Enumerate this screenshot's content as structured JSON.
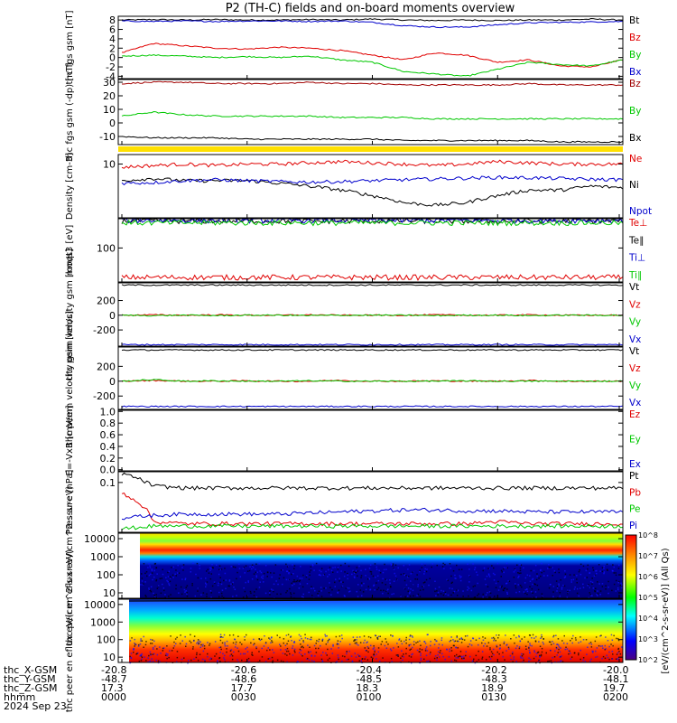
{
  "title": "P2 (TH-C) fields and on-board moments overview",
  "date_label": "2024 Sep 23",
  "colorbar_label": "[eV/(cm^2-s-sr-eV)] (All Qs)",
  "colorbar_ticks": [
    "10^2",
    "10^3",
    "10^4",
    "10^5",
    "10^6",
    "10^7",
    "10^8"
  ],
  "footer": {
    "row_labels": [
      "thc_X-GSM",
      "thc_Y-GSM",
      "thc_Z-GSM",
      "hhmm"
    ],
    "columns": [
      [
        "-20.8",
        "-48.7",
        "17.3",
        "0000"
      ],
      [
        "-20.6",
        "-48.6",
        "17.7",
        "0030"
      ],
      [
        "-20.4",
        "-48.5",
        "18.3",
        "0100"
      ],
      [
        "-20.2",
        "-48.3",
        "18.9",
        "0130"
      ],
      [
        "-20.0",
        "-48.1",
        "19.7",
        "0200"
      ]
    ]
  },
  "colors": {
    "black": "#000000",
    "red": "#e00000",
    "green": "#00c800",
    "blue": "#0000cc",
    "darkred": "#a00000",
    "yellow": "#ffe000"
  },
  "chart_data": [
    {
      "type": "line",
      "ylabel": "thc fgs gsm [nT]",
      "ylim": [
        -4.5,
        8.8
      ],
      "yticks": [
        "8",
        "6",
        "4",
        "2",
        "0",
        "-2",
        "-4"
      ],
      "series": [
        {
          "name": "Bt",
          "color": "#000000",
          "values": [
            8.0,
            8.1,
            8.0,
            8.1,
            8.0,
            8.0,
            8.1,
            8.0,
            8.2,
            8.0,
            7.9,
            8.0,
            7.9,
            8.0,
            8.0,
            8.2,
            8.0
          ]
        },
        {
          "name": "Bz",
          "color": "#e00000",
          "values": [
            1.0,
            3.0,
            2.5,
            2.0,
            1.8,
            2.2,
            2.0,
            1.5,
            0.5,
            -0.5,
            1.0,
            0.5,
            -1.0,
            -0.5,
            -1.8,
            -2.0,
            -0.5
          ]
        },
        {
          "name": "By",
          "color": "#00c800",
          "values": [
            0.3,
            0.5,
            0.3,
            0.0,
            0.2,
            0.0,
            0.3,
            -0.5,
            -1.0,
            -3.0,
            -3.5,
            -4.0,
            -2.5,
            -1.0,
            -1.5,
            -1.8,
            -0.5
          ]
        },
        {
          "name": "Bx",
          "color": "#0000cc",
          "values": [
            7.8,
            7.7,
            7.8,
            7.7,
            7.8,
            7.8,
            7.7,
            7.8,
            7.5,
            6.8,
            6.5,
            6.5,
            7.0,
            7.4,
            7.5,
            7.6,
            7.7
          ]
        }
      ]
    },
    {
      "type": "line",
      "ylabel": "thc fgs gsm (-dp) [nT]",
      "ylim": [
        -16,
        32
      ],
      "yticks": [
        "30",
        "20",
        "10",
        "0",
        "-10"
      ],
      "series": [
        {
          "name": "Bz",
          "color": "#a00000",
          "values": [
            29,
            30,
            30,
            29,
            29,
            29,
            30,
            29,
            29,
            28,
            28,
            28,
            28,
            29,
            28,
            28,
            28
          ]
        },
        {
          "name": "By",
          "color": "#00c800",
          "values": [
            5,
            8,
            6,
            5,
            5,
            5,
            5,
            4,
            4,
            4,
            3,
            3,
            3,
            3,
            3,
            3,
            3
          ]
        },
        {
          "name": "Bx",
          "color": "#000000",
          "values": [
            -10,
            -11,
            -11,
            -11,
            -12,
            -12,
            -12,
            -12,
            -12,
            -13,
            -13,
            -13,
            -13,
            -13,
            -14,
            -14,
            -14
          ]
        }
      ]
    },
    {
      "type": "line",
      "ylabel": "Density [cm-3]",
      "ylim": [
        0.2,
        20
      ],
      "yscale": "log",
      "yticks": [
        "10"
      ],
      "series": [
        {
          "name": "Ne",
          "color": "#e00000",
          "values": [
            8,
            9,
            10,
            9,
            10,
            10,
            11,
            12,
            11,
            10,
            9,
            10,
            12,
            11,
            10,
            10,
            10
          ]
        },
        {
          "name": "Ni",
          "color": "#000000",
          "values": [
            3,
            3.5,
            3,
            3,
            3,
            2.5,
            2,
            1.5,
            1,
            0.6,
            0.5,
            0.6,
            1,
            1.5,
            1.5,
            2,
            1.8
          ]
        },
        {
          "name": "Npot",
          "color": "#0000cc",
          "values": [
            2.5,
            2.6,
            3,
            3.2,
            3.0,
            2.8,
            2.7,
            2.8,
            3.0,
            3.2,
            3.4,
            3.6,
            3.8,
            3.7,
            3.5,
            3.3,
            3.2
          ]
        }
      ]
    },
    {
      "type": "line",
      "ylabel": "moqt3 [eV]",
      "ylim": [
        20,
        400
      ],
      "yscale": "log",
      "yticks": [
        "100"
      ],
      "series": [
        {
          "name": "Te⊥",
          "color": "#e00000",
          "values": [
            25,
            25,
            25,
            25,
            25,
            25,
            25,
            25,
            25,
            25,
            25,
            25,
            25,
            25,
            25,
            25,
            25
          ]
        },
        {
          "name": "Te∥",
          "color": "#000000",
          "values": [
            360,
            360,
            360,
            360,
            360,
            360,
            360,
            360,
            360,
            360,
            360,
            360,
            360,
            360,
            360,
            360,
            360
          ]
        },
        {
          "name": "Ti⊥",
          "color": "#0000cc",
          "values": [
            370,
            370,
            370,
            370,
            370,
            370,
            370,
            370,
            370,
            370,
            370,
            370,
            370,
            370,
            370,
            370,
            370
          ]
        },
        {
          "name": "Ti∥",
          "color": "#00c800",
          "values": [
            330,
            330,
            330,
            330,
            330,
            330,
            330,
            330,
            330,
            330,
            330,
            330,
            330,
            330,
            330,
            330,
            330
          ]
        }
      ]
    },
    {
      "type": "line",
      "ylabel": "thc peim velocity gsm [km/s]",
      "ylim": [
        -420,
        440
      ],
      "yticks": [
        "200",
        "0",
        "-200"
      ],
      "series": [
        {
          "name": "Vt",
          "color": "#000000",
          "values": [
            410,
            410,
            410,
            410,
            410,
            410,
            410,
            410,
            410,
            410,
            410,
            410,
            410,
            410,
            410,
            410,
            410
          ]
        },
        {
          "name": "Vz",
          "color": "#e00000",
          "values": [
            0,
            5,
            0,
            5,
            0,
            0,
            5,
            0,
            0,
            0,
            5,
            0,
            0,
            5,
            0,
            0,
            0
          ]
        },
        {
          "name": "Vy",
          "color": "#00c800",
          "values": [
            0,
            -5,
            0,
            -5,
            0,
            0,
            -5,
            0,
            0,
            0,
            -5,
            0,
            0,
            -5,
            0,
            0,
            0
          ]
        },
        {
          "name": "Vx",
          "color": "#0000cc",
          "values": [
            -400,
            -400,
            -400,
            -400,
            -400,
            -400,
            -400,
            -400,
            -400,
            -400,
            -400,
            -400,
            -400,
            -400,
            -400,
            -400,
            -400
          ]
        }
      ]
    },
    {
      "type": "line",
      "ylabel": "thc peem velocity gsm [km/s]",
      "ylim": [
        -380,
        460
      ],
      "yticks": [
        "200",
        "0",
        "-200"
      ],
      "series": [
        {
          "name": "Vt",
          "color": "#000000",
          "values": [
            420,
            420,
            420,
            420,
            420,
            420,
            420,
            420,
            420,
            420,
            420,
            420,
            420,
            420,
            420,
            420,
            420
          ]
        },
        {
          "name": "Vz",
          "color": "#e00000",
          "values": [
            0,
            10,
            0,
            0,
            5,
            0,
            0,
            10,
            0,
            0,
            5,
            0,
            0,
            10,
            0,
            0,
            0
          ]
        },
        {
          "name": "Vy",
          "color": "#00c800",
          "values": [
            0,
            20,
            0,
            5,
            0,
            0,
            5,
            0,
            0,
            0,
            0,
            5,
            0,
            0,
            0,
            0,
            0
          ]
        },
        {
          "name": "Vx",
          "color": "#0000cc",
          "values": [
            -340,
            -340,
            -340,
            -340,
            -340,
            -340,
            -340,
            -340,
            -340,
            -340,
            -340,
            -340,
            -340,
            -340,
            -340,
            -340,
            -340
          ]
        }
      ]
    },
    {
      "type": "line",
      "ylabel": "E=-VxB [mV/m]",
      "ylim": [
        -0.02,
        1.02
      ],
      "yticks": [
        "1.0",
        "0.8",
        "0.6",
        "0.4",
        "0.2",
        "0.0"
      ],
      "series": [
        {
          "name": "Ez",
          "color": "#e00000",
          "values": []
        },
        {
          "name": "Ey",
          "color": "#00c800",
          "values": []
        },
        {
          "name": "Ex",
          "color": "#0000cc",
          "values": []
        }
      ]
    },
    {
      "type": "line",
      "ylabel": "Pressure [nPa]",
      "ylim": [
        0.004,
        0.2
      ],
      "yscale": "log",
      "yticks": [
        "0.1"
      ],
      "series": [
        {
          "name": "Pt",
          "color": "#000000",
          "values": [
            0.18,
            0.08,
            0.07,
            0.07,
            0.07,
            0.07,
            0.07,
            0.07,
            0.07,
            0.07,
            0.07,
            0.07,
            0.07,
            0.07,
            0.07,
            0.07,
            0.07
          ]
        },
        {
          "name": "Pb",
          "color": "#e00000",
          "values": [
            0.05,
            0.008,
            0.007,
            0.007,
            0.007,
            0.007,
            0.007,
            0.007,
            0.007,
            0.007,
            0.007,
            0.007,
            0.008,
            0.007,
            0.007,
            0.007,
            0.007
          ]
        },
        {
          "name": "Pe",
          "color": "#00c800",
          "values": [
            0.005,
            0.006,
            0.006,
            0.006,
            0.006,
            0.006,
            0.006,
            0.006,
            0.006,
            0.006,
            0.006,
            0.006,
            0.006,
            0.006,
            0.006,
            0.006,
            0.006
          ]
        },
        {
          "name": "Pi",
          "color": "#0000cc",
          "values": [
            0.01,
            0.012,
            0.013,
            0.013,
            0.013,
            0.013,
            0.014,
            0.015,
            0.016,
            0.017,
            0.017,
            0.016,
            0.016,
            0.015,
            0.015,
            0.015,
            0.015
          ]
        }
      ]
    },
    {
      "type": "heatmap",
      "ylabel": "thc peir en eflux eV/(cm^2-s-sr-eV)",
      "ylim": [
        5,
        20000
      ],
      "yscale": "log",
      "yticks": [
        "10000",
        "1000",
        "100",
        "10"
      ]
    },
    {
      "type": "heatmap",
      "ylabel": "thc peer en eflux eV/(cm^2-s-sr-eV)",
      "ylim": [
        5,
        20000
      ],
      "yscale": "log",
      "yticks": [
        "10000",
        "1000",
        "100",
        "10"
      ]
    }
  ]
}
